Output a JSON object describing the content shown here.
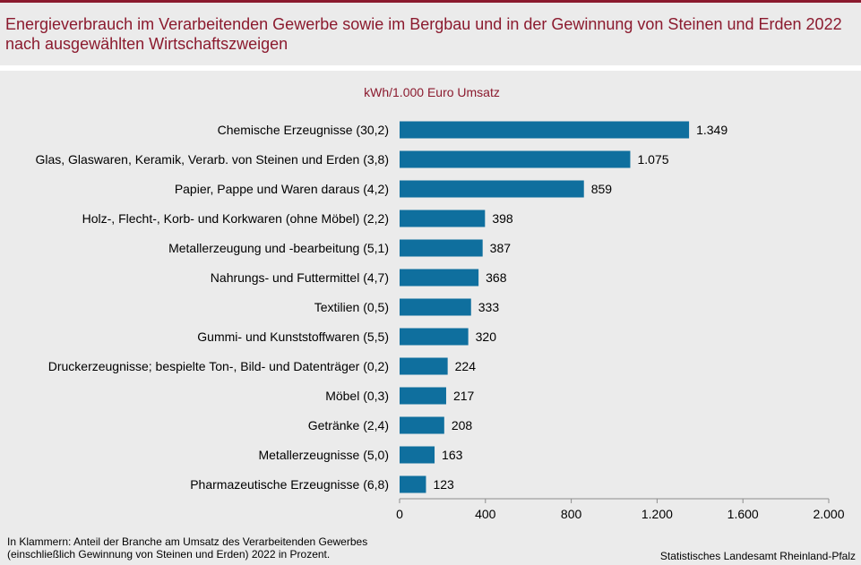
{
  "title": "Energieverbrauch im Verarbeitenden Gewerbe sowie im Bergbau und in der Gewinnung von Steinen und Erden 2022 nach ausgewählten Wirtschaftszweigen",
  "footnote_line1": "In Klammern: Anteil der Branche am Umsatz des Verarbeitenden  Gewerbes",
  "footnote_line2": "(einschließlich Gewinnung von  Steinen und Erden) 2022 in Prozent.",
  "source": "Statistisches Landesamt Rheinland-Pfalz",
  "colors": {
    "accent": "#8b1a2e",
    "bar": "#0f6f9e",
    "background": "#ebebeb"
  },
  "chart_data": {
    "type": "bar",
    "orientation": "horizontal",
    "unit_label": "kWh/1.000  Euro Umsatz",
    "categories": [
      "Chemische Erzeugnisse (30,2)",
      "Glas, Glaswaren, Keramik, Verarb. von Steinen und Erden (3,8)",
      "Papier, Pappe und Waren daraus (4,2)",
      "Holz-, Flecht-, Korb- und Korkwaren (ohne Möbel) (2,2)",
      "Metallerzeugung und -bearbeitung (5,1)",
      "Nahrungs- und Futtermittel (4,7)",
      "Textilien (0,5)",
      "Gummi- und Kunststoffwaren (5,5)",
      "Druckerzeugnisse; bespielte Ton-, Bild- und Datenträger (0,2)",
      "Möbel (0,3)",
      "Getränke (2,4)",
      "Metallerzeugnisse (5,0)",
      "Pharmazeutische Erzeugnisse (6,8)"
    ],
    "values": [
      1349,
      1075,
      859,
      398,
      387,
      368,
      333,
      320,
      224,
      217,
      208,
      163,
      123
    ],
    "value_labels": [
      "1.349",
      "1.075",
      "859",
      "398",
      "387",
      "368",
      "333",
      "320",
      "224",
      "217",
      "208",
      "163",
      "123"
    ],
    "xlim": [
      0,
      2000
    ],
    "xticks": [
      0,
      400,
      800,
      1200,
      1600,
      2000
    ],
    "xtick_labels": [
      "0",
      "400",
      "800",
      "1.200",
      "1.600",
      "2.000"
    ],
    "grid": false,
    "legend": "none"
  }
}
